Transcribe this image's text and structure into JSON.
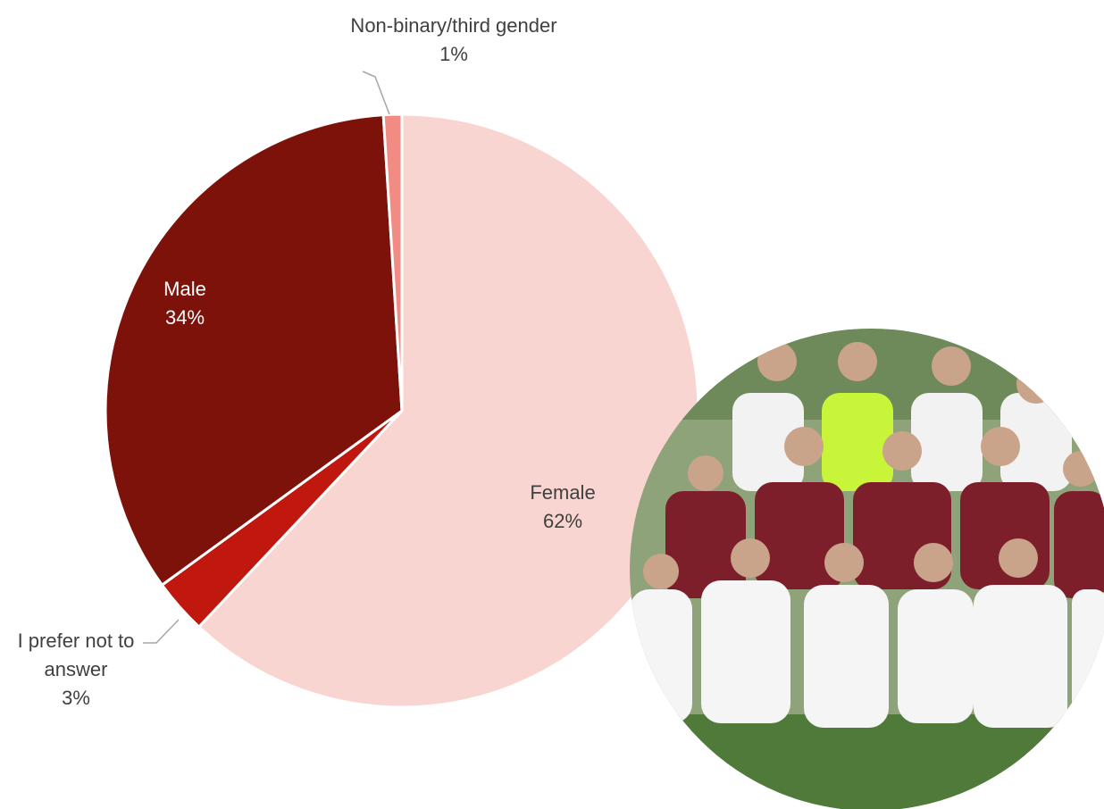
{
  "chart_data": {
    "type": "pie",
    "categories": [
      "Female",
      "I prefer not to answer",
      "Male",
      "Non-binary/third gender"
    ],
    "values": [
      62,
      3,
      34,
      1
    ],
    "value_labels": [
      "62%",
      "3%",
      "34%",
      "1%"
    ],
    "colors": [
      "#f9d5d1",
      "#c0180f",
      "#7d120b",
      "#f28b82"
    ]
  }
}
